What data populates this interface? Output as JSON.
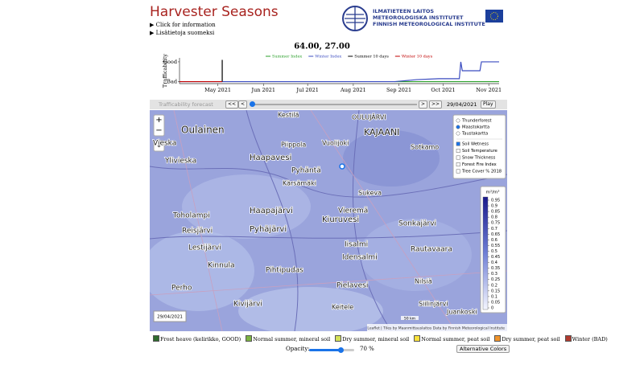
{
  "header": {
    "title": "Harvester Seasons",
    "links": [
      "Click for information",
      "Lisätietoja suomeksi"
    ],
    "logo": [
      "ILMATIETEEN LAITOS",
      "METEOROLOGISKA INSTITUTET",
      "FINNISH METEOROLOGICAL INSTITUTE"
    ]
  },
  "chart_data": {
    "type": "line",
    "title": "64.00, 27.00",
    "ylabel": "Trafficability",
    "xlim": [
      4,
      221
    ],
    "ylim": [
      -0.1,
      1.2
    ],
    "xticks": [
      {
        "value": 30,
        "label": "May 2021"
      },
      {
        "value": 61,
        "label": "Jun 2021"
      },
      {
        "value": 91,
        "label": "Jul 2021"
      },
      {
        "value": 122,
        "label": "Aug 2021"
      },
      {
        "value": 153,
        "label": "Sep 2021"
      },
      {
        "value": 183,
        "label": "Oct 2021"
      },
      {
        "value": 214,
        "label": "Nov 2021"
      }
    ],
    "yticks": [
      {
        "value": 1,
        "label": "Good"
      },
      {
        "value": 0,
        "label": "Bad"
      }
    ],
    "series": [
      {
        "name": "Summer Index",
        "color": "#2ca02c",
        "x": [
          150,
          221
        ],
        "values": [
          0,
          0
        ]
      },
      {
        "name": "Winter Index",
        "color": "#3b4cc0",
        "x": [
          4,
          150,
          165,
          180,
          194,
          195,
          196,
          208,
          209,
          221
        ],
        "values": [
          0,
          0,
          0.1,
          0.15,
          0.15,
          1,
          0.55,
          0.55,
          1,
          1
        ]
      },
      {
        "name": "Summer 10 days",
        "color": "#000000",
        "x": [
          33,
          33
        ],
        "values": [
          1.1,
          0
        ]
      },
      {
        "name": "Winter 10 days",
        "color": "#c00000",
        "x": [
          4,
          33
        ],
        "values": [
          0,
          0
        ]
      }
    ]
  },
  "controls": {
    "panel_label": "Trafficability forecast",
    "buttons": [
      "<<",
      "<",
      ">",
      ">>"
    ],
    "date": "29/04/2021",
    "play": "Play"
  },
  "map": {
    "zoom": [
      "+",
      "−"
    ],
    "date": "29/04/2021",
    "scale": "50 km",
    "attribution": "Leaflet | Tiles by Maanmittauslaitos Data by Finnish Meteorological Institute",
    "places": [
      "Oulainen",
      "Vieska",
      "Ylivieska",
      "Haapavesi",
      "Kestilä",
      "Piippola",
      "Vuolijoki",
      "OULUJÄRVI",
      "KAJAANI",
      "Sotkamo",
      "Pyhäntä",
      "Kärsämäki",
      "Sukeva",
      "Vieremä",
      "Haapajärvi",
      "Reisjärvi",
      "Pyhäjärvi",
      "Kiuruvesi",
      "Sonkajärvi",
      "Toholampi",
      "Lestijärvi",
      "Iisalmi",
      "Idensalmi",
      "Rautavaara",
      "Kinnula",
      "Pihtipudas",
      "Perho",
      "Kivijärvi",
      "Pielavesi",
      "Nilsiä",
      "Keitele",
      "Siilinjärvi",
      "Juankoski"
    ],
    "base_layers": [
      {
        "label": "Thunderforest",
        "checked": false
      },
      {
        "label": "Maastokartta",
        "checked": true
      },
      {
        "label": "Taustakartta",
        "checked": false
      }
    ],
    "overlays": [
      {
        "label": "Soil Wetness",
        "checked": true
      },
      {
        "label": "Soil Temperature",
        "checked": false
      },
      {
        "label": "Snow Thickness",
        "checked": false
      },
      {
        "label": "Forest Fire Index",
        "checked": false
      },
      {
        "label": "Tree Cover % 2018",
        "checked": false
      }
    ],
    "colorbar": {
      "unit": "m³/m³",
      "ticks": [
        0.95,
        0.9,
        0.85,
        0.8,
        0.75,
        0.7,
        0.65,
        0.6,
        0.55,
        0.5,
        0.45,
        0.4,
        0.35,
        0.3,
        0.25,
        0.2,
        0.15,
        0.1,
        0.05,
        0
      ]
    }
  },
  "legend": [
    {
      "label": "Frost heave (kelirikko, GOOD)",
      "color": "#2e6b2e"
    },
    {
      "label": "Normal summer, mineral soil",
      "color": "#7cb342"
    },
    {
      "label": "Dry summer, mineral soil",
      "color": "#d4e157"
    },
    {
      "label": "Normal summer, peat soil",
      "color": "#fbe23c"
    },
    {
      "label": "Dry summer, peat soil",
      "color": "#f0932b"
    },
    {
      "label": "Winter (BAD)",
      "color": "#b03a2e"
    }
  ],
  "opacity": {
    "label": "Opacity:",
    "value": 70,
    "value_label": "70 %"
  },
  "alt_colors": "Alternative Colors"
}
